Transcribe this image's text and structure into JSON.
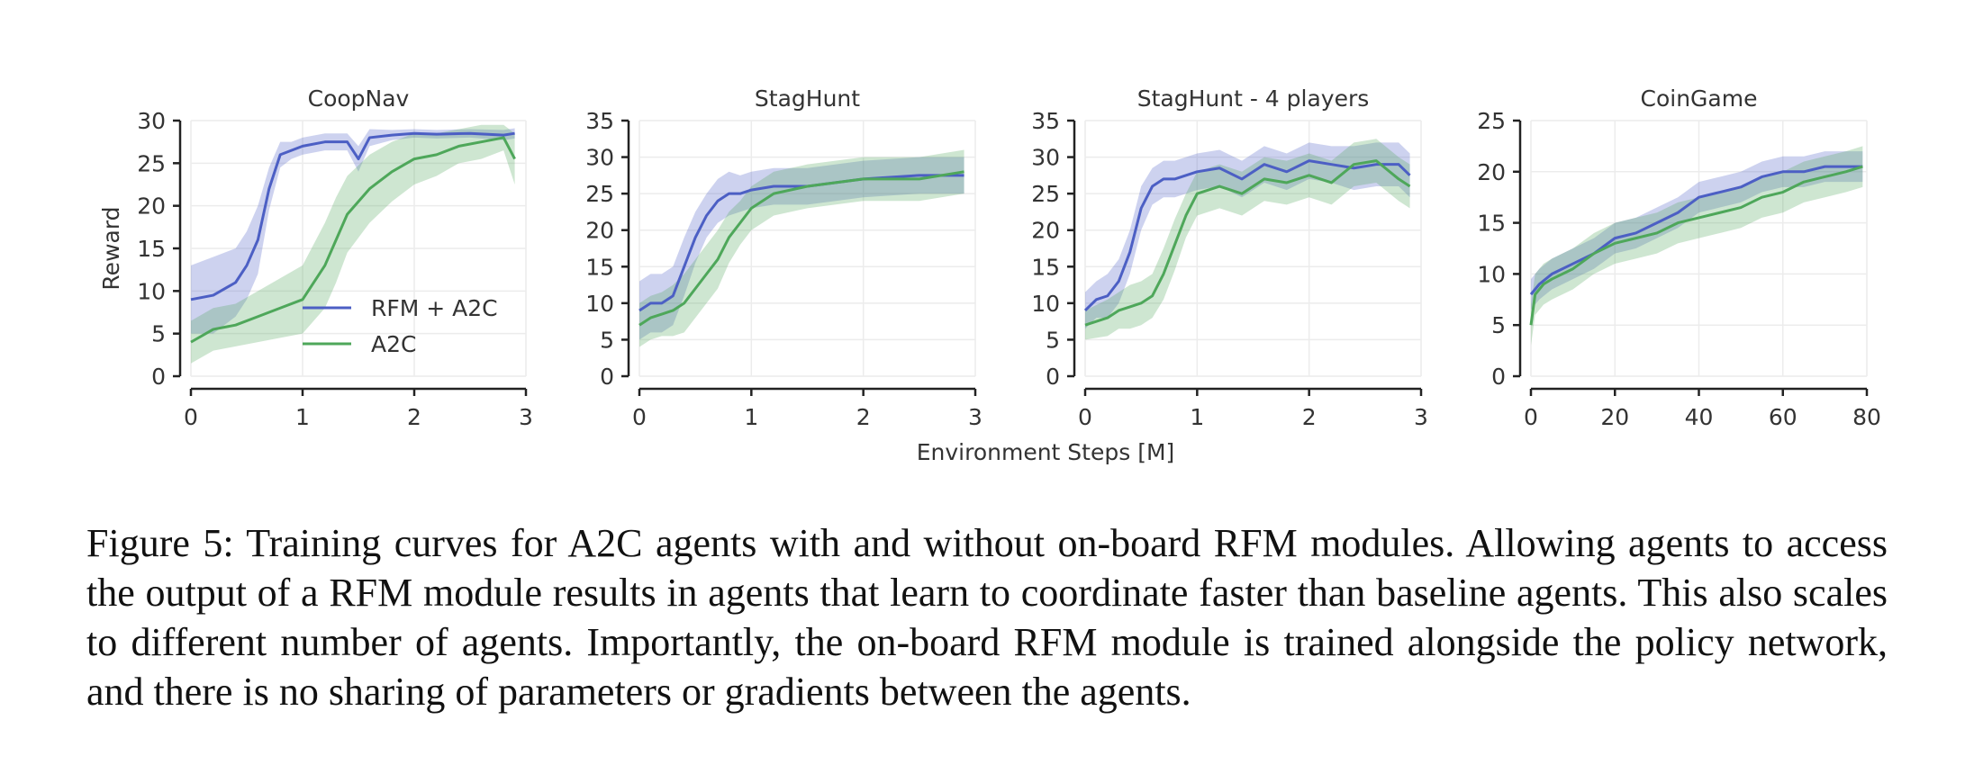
{
  "figure": {
    "xlabel": "Environment Steps [M]",
    "legend": [
      "RFM + A2C",
      "A2C"
    ],
    "colors": {
      "rfm": "#4c5fc4",
      "a2c": "#4ea75a"
    }
  },
  "chart_data": [
    {
      "type": "line",
      "title": "CoopNav",
      "ylabel": "Reward",
      "xlabel": "",
      "xlim": [
        0,
        3
      ],
      "ylim": [
        0,
        30
      ],
      "xticks": [
        0,
        1,
        2,
        3
      ],
      "yticks": [
        0,
        5,
        10,
        15,
        20,
        25,
        30
      ],
      "legend_position": "lower-right",
      "series": [
        {
          "name": "RFM + A2C",
          "x": [
            0,
            0.2,
            0.4,
            0.5,
            0.6,
            0.7,
            0.8,
            0.9,
            1.0,
            1.2,
            1.4,
            1.5,
            1.6,
            1.8,
            2.0,
            2.2,
            2.5,
            2.8,
            2.9
          ],
          "y": [
            9,
            9.5,
            11,
            13,
            16,
            22,
            26,
            26.5,
            27,
            27.5,
            27.5,
            25.5,
            28,
            28.3,
            28.5,
            28.4,
            28.5,
            28.3,
            28.5
          ],
          "band": [
            4,
            4.5,
            4,
            4,
            4,
            2.5,
            1.5,
            1,
            1,
            1,
            1,
            1.5,
            1,
            0.6,
            0.5,
            0.5,
            0.5,
            0.6,
            0.6
          ]
        },
        {
          "name": "A2C",
          "x": [
            0,
            0.2,
            0.4,
            0.6,
            0.8,
            1.0,
            1.2,
            1.3,
            1.4,
            1.6,
            1.8,
            2.0,
            2.2,
            2.4,
            2.6,
            2.8,
            2.9
          ],
          "y": [
            4,
            5.5,
            6,
            7,
            8,
            9,
            13,
            16,
            19,
            22,
            24,
            25.5,
            26,
            27,
            27.5,
            28,
            25.5
          ],
          "band": [
            2.5,
            2.5,
            2.5,
            3,
            3.5,
            4,
            5,
            5,
            4.5,
            4,
            3.5,
            3,
            2.5,
            2,
            2,
            1.5,
            3
          ]
        }
      ]
    },
    {
      "type": "line",
      "title": "StagHunt",
      "xlabel": "",
      "ylabel": "",
      "xlim": [
        0,
        3
      ],
      "ylim": [
        0,
        35
      ],
      "xticks": [
        0,
        1,
        2,
        3
      ],
      "yticks": [
        0,
        5,
        10,
        15,
        20,
        25,
        30,
        35
      ],
      "series": [
        {
          "name": "RFM + A2C",
          "x": [
            0,
            0.1,
            0.2,
            0.3,
            0.4,
            0.5,
            0.6,
            0.7,
            0.8,
            0.9,
            1.0,
            1.2,
            1.5,
            2.0,
            2.5,
            2.9
          ],
          "y": [
            9,
            10,
            10,
            11,
            15,
            19,
            22,
            24,
            25,
            25,
            25.5,
            26,
            26,
            27,
            27.5,
            27.5
          ],
          "band": [
            4,
            4,
            4,
            4,
            4,
            3.5,
            3,
            3,
            3,
            2.5,
            2.5,
            2.5,
            2.5,
            2.5,
            2.5,
            2.5
          ]
        },
        {
          "name": "A2C",
          "x": [
            0,
            0.1,
            0.2,
            0.3,
            0.4,
            0.5,
            0.6,
            0.7,
            0.8,
            0.9,
            1.0,
            1.2,
            1.5,
            2.0,
            2.5,
            2.9
          ],
          "y": [
            7,
            8,
            8.5,
            9,
            10,
            12,
            14,
            16,
            19,
            21,
            23,
            25,
            26,
            27,
            27,
            28
          ],
          "band": [
            3,
            3,
            3,
            3.5,
            4,
            4,
            4,
            4,
            3.5,
            3,
            3,
            3,
            3,
            3,
            3,
            3
          ]
        }
      ]
    },
    {
      "type": "line",
      "title": "StagHunt - 4 players",
      "xlabel": "",
      "ylabel": "",
      "xlim": [
        0,
        3
      ],
      "ylim": [
        0,
        35
      ],
      "xticks": [
        0,
        1,
        2,
        3
      ],
      "yticks": [
        0,
        5,
        10,
        15,
        20,
        25,
        30,
        35
      ],
      "series": [
        {
          "name": "RFM + A2C",
          "x": [
            0,
            0.1,
            0.2,
            0.3,
            0.4,
            0.5,
            0.6,
            0.7,
            0.8,
            1.0,
            1.2,
            1.4,
            1.6,
            1.8,
            2.0,
            2.2,
            2.4,
            2.6,
            2.8,
            2.9
          ],
          "y": [
            9,
            10.5,
            11,
            13,
            17,
            23,
            26,
            27,
            27,
            28,
            28.5,
            27,
            29,
            28,
            29.5,
            29,
            28.5,
            29,
            29,
            27.5
          ],
          "band": [
            2.5,
            2.5,
            3,
            3,
            3,
            3,
            2.5,
            2.5,
            2.5,
            2.5,
            2.5,
            2.5,
            2.5,
            2.5,
            2.5,
            2.5,
            3,
            3,
            3,
            3
          ]
        },
        {
          "name": "A2C",
          "x": [
            0,
            0.2,
            0.3,
            0.4,
            0.5,
            0.6,
            0.7,
            0.8,
            0.9,
            1.0,
            1.2,
            1.4,
            1.6,
            1.8,
            2.0,
            2.2,
            2.4,
            2.6,
            2.8,
            2.9
          ],
          "y": [
            7,
            8,
            9,
            9.5,
            10,
            11,
            14,
            18,
            22,
            25,
            26,
            25,
            27,
            26.5,
            27.5,
            26.5,
            29,
            29.5,
            27,
            26
          ],
          "band": [
            2,
            2.5,
            2.5,
            3,
            3,
            3,
            3.5,
            3.5,
            3,
            3,
            3,
            3,
            3,
            3,
            3,
            3,
            3,
            3,
            3,
            3
          ]
        }
      ]
    },
    {
      "type": "line",
      "title": "CoinGame",
      "xlabel": "",
      "ylabel": "",
      "xlim": [
        0,
        80
      ],
      "ylim": [
        0,
        25
      ],
      "xticks": [
        0,
        20,
        40,
        60,
        80
      ],
      "yticks": [
        0,
        5,
        10,
        15,
        20,
        25
      ],
      "series": [
        {
          "name": "RFM + A2C",
          "x": [
            0,
            2,
            5,
            10,
            15,
            20,
            25,
            30,
            35,
            40,
            45,
            50,
            55,
            60,
            65,
            70,
            75,
            79
          ],
          "y": [
            8,
            9,
            10,
            11,
            12,
            13.5,
            14,
            15,
            16,
            17.5,
            18,
            18.5,
            19.5,
            20,
            20,
            20.5,
            20.5,
            20.5
          ],
          "band": [
            1.5,
            1.5,
            1.5,
            1.5,
            1.5,
            1.5,
            1.5,
            1.5,
            1.5,
            1.5,
            1.5,
            1.5,
            1.5,
            1.5,
            1.5,
            1.5,
            1.5,
            1.5
          ]
        },
        {
          "name": "A2C",
          "x": [
            0,
            1,
            3,
            5,
            10,
            15,
            20,
            25,
            30,
            35,
            40,
            45,
            50,
            55,
            60,
            65,
            70,
            75,
            79
          ],
          "y": [
            5,
            8,
            9,
            9.5,
            10.5,
            12,
            13,
            13.5,
            14,
            15,
            15.5,
            16,
            16.5,
            17.5,
            18,
            19,
            19.5,
            20,
            20.5
          ],
          "band": [
            2,
            2,
            2,
            2,
            2,
            2,
            2,
            2,
            2,
            2,
            2,
            2,
            2,
            2,
            2,
            2,
            2,
            2,
            2
          ]
        }
      ]
    }
  ],
  "caption": "Figure 5: Training curves for A2C agents with and without on-board RFM modules. Allowing agents to access the output of a RFM module results in agents that learn to coordinate faster than baseline agents. This also scales to different number of agents. Importantly, the on-board RFM module is trained alongside the policy network, and there is no sharing of parameters or gradients between the agents."
}
